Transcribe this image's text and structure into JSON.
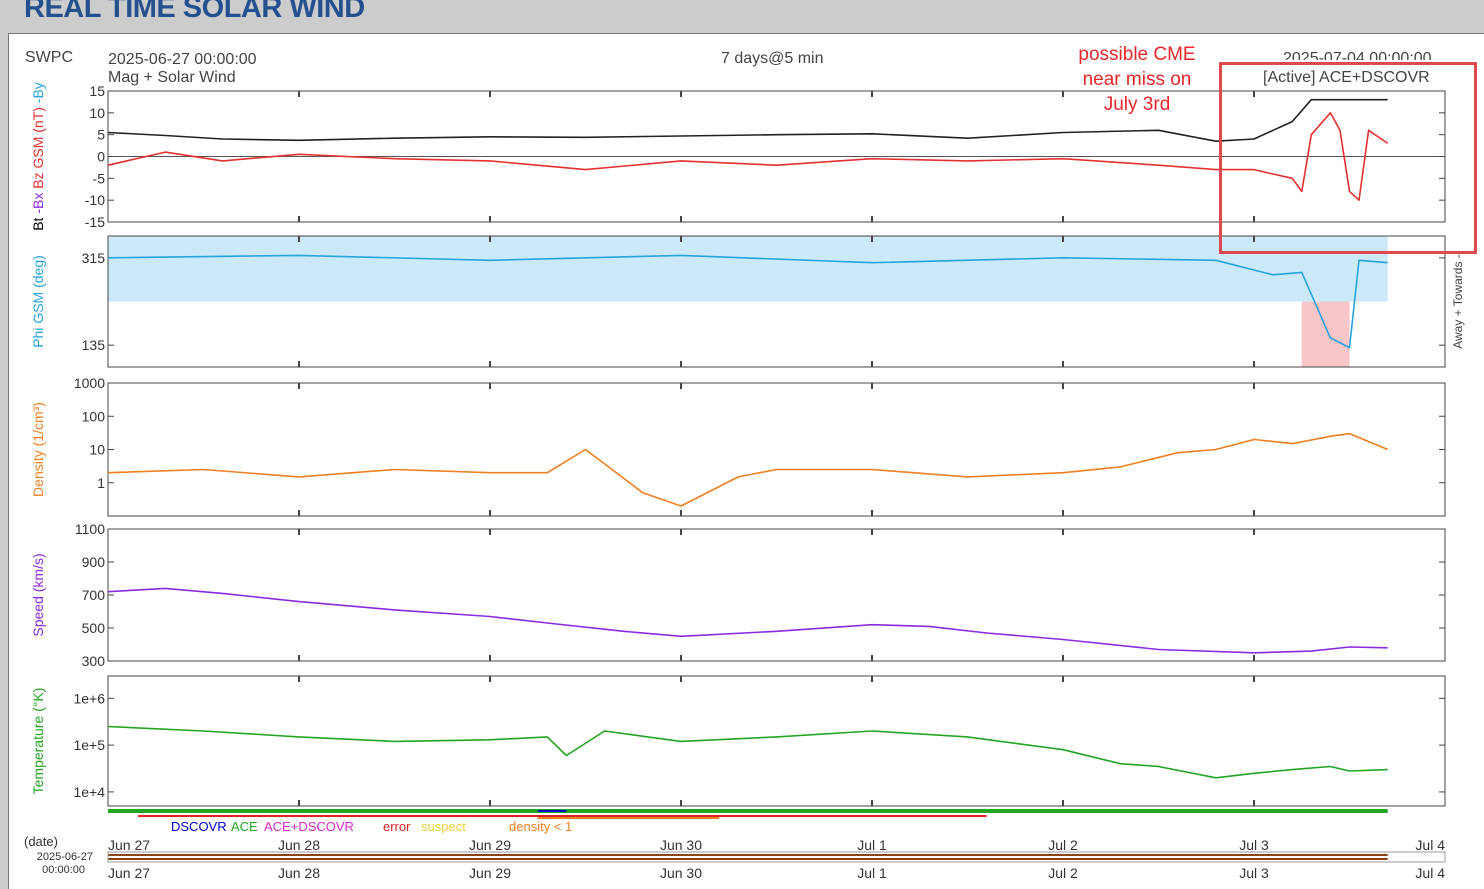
{
  "page": {
    "title": "REAL TIME SOLAR WIND",
    "source": "SWPC",
    "start_time": "2025-06-27 00:00:00",
    "end_time": "2025-07-04 00:00:00",
    "resolution": "7 days@5 min",
    "subtitle": "Mag + Solar Wind",
    "active_source": "[Active] ACE+DSCOVR",
    "annotation": "possible CME near miss on July 3rd",
    "date_label": "(date)",
    "date_value": "2025-06-27",
    "time_value": "00:00:00"
  },
  "legend": [
    {
      "label": "DSCOVR",
      "color": "#0000cc"
    },
    {
      "label": "ACE",
      "color": "#22a522"
    },
    {
      "label": "ACE+DSCOVR",
      "color": "#d62ac9"
    },
    {
      "label": "error",
      "color": "#dd2222"
    },
    {
      "label": "suspect",
      "color": "#e8d33a"
    },
    {
      "label": "density < 1",
      "color": "#ef7f20"
    }
  ],
  "chart_data": {
    "type": "line",
    "x_tick_labels": [
      "Jun 27",
      "Jun 28",
      "Jun 29",
      "Jun 30",
      "Jul 1",
      "Jul 2",
      "Jul 3",
      "Jul 4"
    ],
    "x_range_days": [
      0,
      7
    ],
    "panels": [
      {
        "id": "mag",
        "ylabel_parts": [
          {
            "text": "Bt",
            "color": "#000000"
          },
          {
            "text": "-Bx",
            "color": "#8a2be2"
          },
          {
            "text": "Bz GSM (nT)",
            "color": "#e53030"
          },
          {
            "text": "-By",
            "color": "#26a4e0"
          }
        ],
        "ylim": [
          -15,
          15
        ],
        "yticks": [
          15,
          10,
          5,
          0,
          -5,
          -10,
          -15
        ],
        "series": [
          {
            "name": "Bt",
            "color": "#222222",
            "x_days": [
              0,
              0.3,
              0.6,
              1.0,
              1.5,
              2.0,
              2.5,
              3.0,
              3.5,
              4.0,
              4.5,
              5.0,
              5.5,
              5.8,
              6.0,
              6.1,
              6.2,
              6.3,
              6.5,
              6.7
            ],
            "values": [
              5.5,
              4.8,
              4,
              3.7,
              4.2,
              4.5,
              4.4,
              4.7,
              5,
              5.2,
              4.2,
              5.5,
              6,
              3.5,
              4,
              6,
              8,
              13,
              13,
              13
            ]
          },
          {
            "name": "Bz",
            "color": "#e53030",
            "x_days": [
              0,
              0.3,
              0.6,
              1.0,
              1.5,
              2.0,
              2.5,
              3.0,
              3.5,
              4.0,
              4.5,
              5.0,
              5.5,
              5.8,
              6.0,
              6.1,
              6.2,
              6.25,
              6.3,
              6.4,
              6.45,
              6.5,
              6.55,
              6.6,
              6.7
            ],
            "values": [
              -2,
              1,
              -1,
              0.5,
              -0.5,
              -1,
              -3,
              -1,
              -2,
              -0.5,
              -1,
              -0.5,
              -2,
              -3,
              -3,
              -4,
              -5,
              -8,
              5,
              10,
              6,
              -8,
              -10,
              6,
              3
            ]
          }
        ]
      },
      {
        "id": "phi",
        "ylabel": "Phi GSM (deg)",
        "ylabel_color": "#26a4e0",
        "ylim": [
          90,
          360
        ],
        "yticks": [
          315,
          135
        ],
        "side_label": "Away +  Towards -",
        "series": [
          {
            "name": "Phi",
            "color": "#26a4e0",
            "x_days": [
              0,
              1,
              2,
              3,
              4,
              5,
              5.8,
              6.0,
              6.1,
              6.25,
              6.4,
              6.5,
              6.55,
              6.7
            ],
            "values": [
              315,
              320,
              310,
              320,
              305,
              315,
              310,
              290,
              280,
              285,
              150,
              130,
              310,
              305
            ]
          }
        ]
      },
      {
        "id": "density",
        "ylabel": "Density (1/cm³)",
        "ylabel_color": "#ef7f20",
        "scale": "log",
        "ylim": [
          0.1,
          1000
        ],
        "yticks": [
          1000,
          100,
          10,
          1
        ],
        "series": [
          {
            "name": "Density",
            "color": "#ef7f20",
            "x_days": [
              0,
              0.5,
              1.0,
              1.5,
              2.0,
              2.3,
              2.5,
              2.8,
              3.0,
              3.3,
              3.5,
              4.0,
              4.5,
              5.0,
              5.3,
              5.6,
              5.8,
              6.0,
              6.2,
              6.4,
              6.5,
              6.7
            ],
            "values": [
              2,
              2.5,
              1.5,
              2.5,
              2,
              2,
              10,
              0.5,
              0.2,
              1.5,
              2.5,
              2.5,
              1.5,
              2,
              3,
              8,
              10,
              20,
              15,
              25,
              30,
              10
            ]
          }
        ]
      },
      {
        "id": "speed",
        "ylabel": "Speed (km/s)",
        "ylabel_color": "#8a2be2",
        "ylim": [
          300,
          1100
        ],
        "yticks": [
          1100,
          900,
          700,
          500,
          300
        ],
        "series": [
          {
            "name": "Speed",
            "color": "#8a2be2",
            "x_days": [
              0,
              0.3,
              0.6,
              1.0,
              1.5,
              2.0,
              2.3,
              2.7,
              3.0,
              3.5,
              4.0,
              4.3,
              4.6,
              5.0,
              5.5,
              6.0,
              6.3,
              6.5,
              6.7
            ],
            "values": [
              720,
              740,
              710,
              660,
              610,
              570,
              530,
              480,
              450,
              480,
              520,
              510,
              470,
              430,
              370,
              350,
              360,
              385,
              380
            ]
          }
        ]
      },
      {
        "id": "temperature",
        "ylabel": "Temperature (°K)",
        "ylabel_color": "#22a522",
        "scale": "log",
        "ylim": [
          5000,
          3000000
        ],
        "ytick_values": [
          1000000,
          100000,
          10000
        ],
        "ytick_labels": [
          "1e+6",
          "1e+5",
          "1e+4"
        ],
        "series": [
          {
            "name": "Temperature",
            "color": "#22a522",
            "x_days": [
              0,
              0.5,
              1.0,
              1.5,
              2.0,
              2.3,
              2.4,
              2.6,
              3.0,
              3.5,
              4.0,
              4.5,
              5.0,
              5.3,
              5.5,
              5.8,
              6.0,
              6.2,
              6.4,
              6.5,
              6.7
            ],
            "values": [
              250000,
              200000,
              150000,
              120000,
              130000,
              150000,
              60000,
              200000,
              120000,
              150000,
              200000,
              150000,
              80000,
              40000,
              35000,
              20000,
              25000,
              30000,
              35000,
              28000,
              30000
            ]
          }
        ]
      }
    ]
  }
}
